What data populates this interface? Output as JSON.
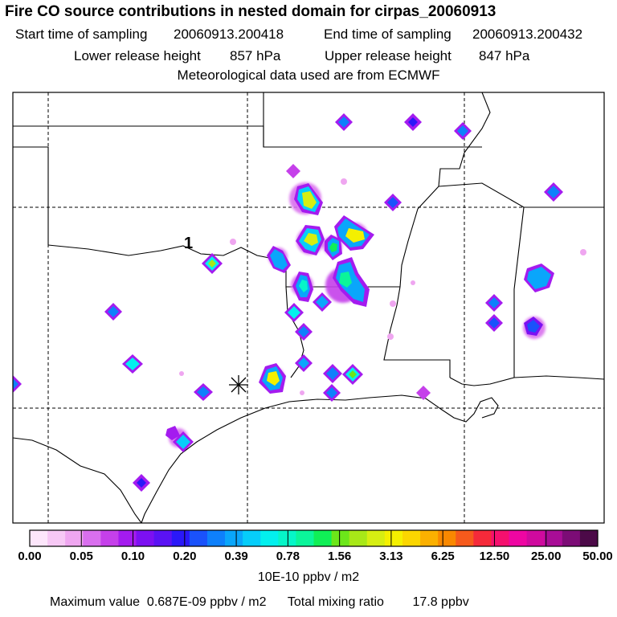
{
  "header": {
    "title": "Fire CO source contributions in nested domain for cirpas_20060913",
    "start_label": "Start time of sampling",
    "start_value": "20060913.200418",
    "end_label": "End time of sampling",
    "end_value": "20060913.200432",
    "lower_label": "Lower release height",
    "lower_value": "857 hPa",
    "upper_label": "Upper release height",
    "upper_value": "847 hPa",
    "met_text": "Meteorological data used are from ECMWF"
  },
  "map": {
    "trajectory_label": "1",
    "release_marker": "asterisk-release-icon"
  },
  "colorbar": {
    "tick_labels": [
      "0.00",
      "0.05",
      "0.10",
      "0.20",
      "0.39",
      "0.78",
      "1.56",
      "3.13",
      "6.25",
      "12.50",
      "25.00",
      "50.00"
    ],
    "colors": [
      "#fde6fb",
      "#f7c8f5",
      "#efa6f0",
      "#d96fee",
      "#c540ea",
      "#a41bef",
      "#7c10f2",
      "#5a12f4",
      "#2a18f8",
      "#1a52fb",
      "#0e80fb",
      "#0aa6fb",
      "#06cdfa",
      "#03f0ee",
      "#06f6c8",
      "#0bf59a",
      "#10ef56",
      "#6ce61a",
      "#a8e818",
      "#d6ee12",
      "#f4f000",
      "#fbd600",
      "#fbb000",
      "#f98800",
      "#f65a1c",
      "#f52a3a",
      "#f5106e",
      "#ee06a2",
      "#cf0a9e",
      "#a80d96",
      "#7c0c76",
      "#4c0a48"
    ],
    "units": "10E-10 ppbv / m2"
  },
  "footer": {
    "max_label": "Maximum value",
    "max_value": "0.687E-09 ppbv / m2",
    "total_label": "Total mixing ratio",
    "total_value": "17.8 ppbv"
  }
}
